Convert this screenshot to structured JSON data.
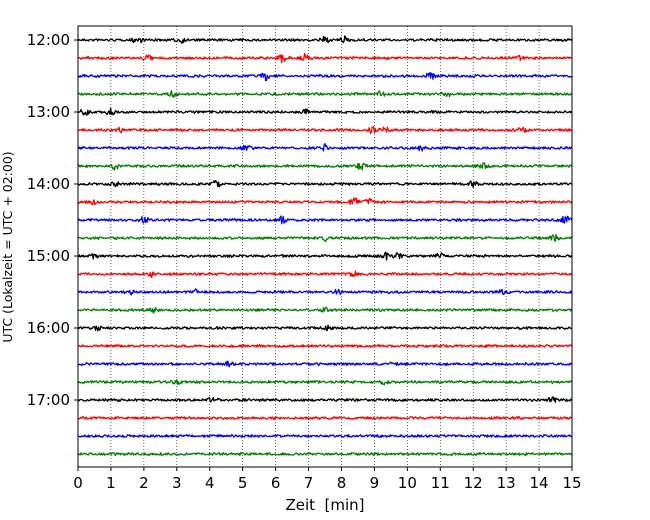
{
  "chart_data": {
    "type": "line",
    "xlabel": "Zeit  [min]",
    "ylabel": "UTC (Lokalzeit = UTC + 02:00)",
    "xlim": [
      0,
      15
    ],
    "x_ticks": [
      "0",
      "1",
      "2",
      "3",
      "4",
      "5",
      "6",
      "7",
      "8",
      "9",
      "10",
      "11",
      "12",
      "13",
      "14",
      "15"
    ],
    "y_ticks": [
      "12:00",
      "13:00",
      "14:00",
      "15:00",
      "16:00",
      "17:00"
    ],
    "grid": "vertical dotted lines at each minute",
    "colors": [
      "#000000",
      "#ff0000",
      "#0000ff",
      "#008000"
    ],
    "traces": [
      {
        "start": "12:00",
        "color": "#000000",
        "events": [
          [
            1.8,
            3.5
          ],
          [
            3.1,
            2.5
          ],
          [
            7.5,
            2.5
          ],
          [
            8.1,
            3.0
          ]
        ]
      },
      {
        "start": "12:15",
        "color": "#ff0000",
        "events": [
          [
            2.1,
            3.0
          ],
          [
            6.2,
            4.5
          ],
          [
            6.9,
            3.5
          ],
          [
            13.4,
            2.5
          ]
        ]
      },
      {
        "start": "12:30",
        "color": "#0000ff",
        "events": [
          [
            5.7,
            4.0
          ],
          [
            10.7,
            3.0
          ]
        ]
      },
      {
        "start": "12:45",
        "color": "#008000",
        "events": [
          [
            2.9,
            3.0
          ],
          [
            9.2,
            2.5
          ],
          [
            11.2,
            2.5
          ]
        ]
      },
      {
        "start": "13:00",
        "color": "#000000",
        "events": [
          [
            0.2,
            3.0
          ],
          [
            1.0,
            3.0
          ],
          [
            6.9,
            2.5
          ]
        ]
      },
      {
        "start": "13:15",
        "color": "#ff0000",
        "events": [
          [
            1.3,
            2.5
          ],
          [
            8.9,
            4.0
          ],
          [
            9.3,
            3.5
          ],
          [
            13.5,
            2.5
          ]
        ]
      },
      {
        "start": "13:30",
        "color": "#0000ff",
        "events": [
          [
            5.1,
            2.5
          ],
          [
            7.5,
            3.5
          ],
          [
            10.4,
            2.5
          ]
        ]
      },
      {
        "start": "13:45",
        "color": "#008000",
        "events": [
          [
            1.1,
            3.0
          ],
          [
            8.6,
            3.5
          ],
          [
            12.3,
            2.5
          ]
        ]
      },
      {
        "start": "14:00",
        "color": "#000000",
        "events": [
          [
            1.1,
            3.0
          ],
          [
            4.2,
            3.0
          ],
          [
            12.0,
            2.5
          ]
        ]
      },
      {
        "start": "14:15",
        "color": "#ff0000",
        "events": [
          [
            0.5,
            3.0
          ],
          [
            8.4,
            4.5
          ],
          [
            8.8,
            3.5
          ]
        ]
      },
      {
        "start": "14:30",
        "color": "#0000ff",
        "events": [
          [
            2.0,
            3.0
          ],
          [
            6.2,
            3.5
          ],
          [
            14.8,
            4.5
          ]
        ]
      },
      {
        "start": "14:45",
        "color": "#008000",
        "events": [
          [
            7.5,
            3.0
          ],
          [
            14.5,
            3.5
          ]
        ]
      },
      {
        "start": "15:00",
        "color": "#000000",
        "events": [
          [
            0.5,
            3.0
          ],
          [
            9.3,
            4.0
          ],
          [
            9.7,
            3.5
          ],
          [
            11.0,
            2.5
          ]
        ]
      },
      {
        "start": "15:15",
        "color": "#ff0000",
        "events": [
          [
            2.2,
            2.5
          ],
          [
            8.4,
            2.5
          ]
        ]
      },
      {
        "start": "15:30",
        "color": "#0000ff",
        "events": [
          [
            1.6,
            2.5
          ],
          [
            3.6,
            2.5
          ],
          [
            7.9,
            2.5
          ],
          [
            12.9,
            2.5
          ]
        ]
      },
      {
        "start": "15:45",
        "color": "#008000",
        "events": [
          [
            2.3,
            2.5
          ],
          [
            7.5,
            2.0
          ]
        ]
      },
      {
        "start": "16:00",
        "color": "#000000",
        "events": [
          [
            0.6,
            2.0
          ],
          [
            7.6,
            2.0
          ]
        ]
      },
      {
        "start": "16:15",
        "color": "#ff0000",
        "events": []
      },
      {
        "start": "16:30",
        "color": "#0000ff",
        "events": [
          [
            4.6,
            2.5
          ],
          [
            9.6,
            2.0
          ]
        ]
      },
      {
        "start": "16:45",
        "color": "#008000",
        "events": [
          [
            3.0,
            2.5
          ],
          [
            9.3,
            2.0
          ]
        ]
      },
      {
        "start": "17:00",
        "color": "#000000",
        "events": [
          [
            4.1,
            3.0
          ],
          [
            14.4,
            2.5
          ]
        ]
      },
      {
        "start": "17:15",
        "color": "#ff0000",
        "events": []
      },
      {
        "start": "17:30",
        "color": "#0000ff",
        "events": []
      },
      {
        "start": "17:45",
        "color": "#008000",
        "events": []
      }
    ]
  }
}
